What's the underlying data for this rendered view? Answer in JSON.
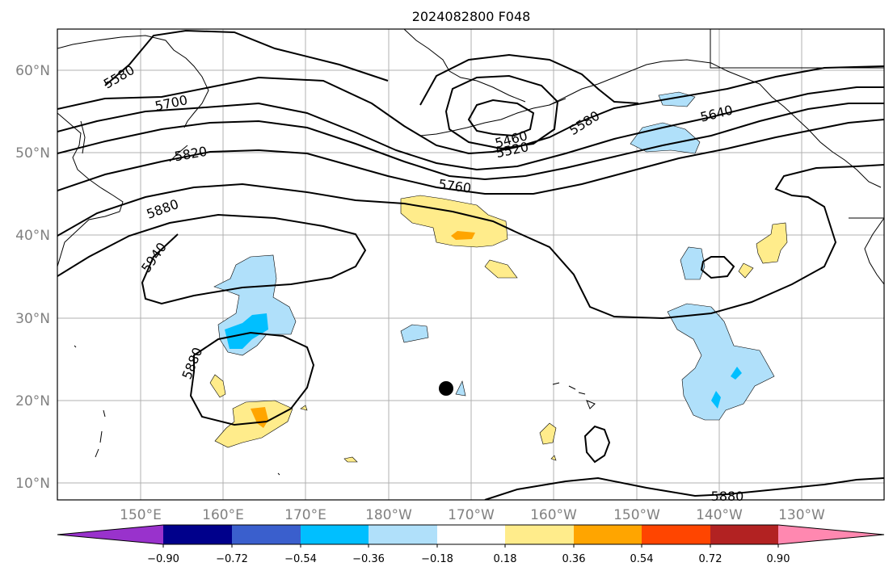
{
  "title": "2024082800 F048",
  "colors": {
    "coast": "#000000",
    "grid": "#b0b0b0",
    "contour": "#000000",
    "bins": [
      "#9932cc",
      "#00008b",
      "#3a5fcd",
      "#00bfff",
      "#b0e0fa",
      "#ffffff",
      "#ffec8b",
      "#ffa500",
      "#ff4500",
      "#b22222",
      "#ff88b0"
    ]
  },
  "axes": {
    "lat_labels": [
      "60°N",
      "50°N",
      "40°N",
      "30°N",
      "20°N",
      "10°N"
    ],
    "lon_labels": [
      "150°E",
      "160°E",
      "170°E",
      "180°W",
      "170°W",
      "160°W",
      "150°W",
      "140°W",
      "130°W"
    ]
  },
  "contour_labels": [
    "5580",
    "5700",
    "5820",
    "5880",
    "5940",
    "5880",
    "5460",
    "5520",
    "5580",
    "5640",
    "5760",
    "5880"
  ],
  "colorbar": {
    "ticks": [
      "−0.90",
      "−0.72",
      "−0.54",
      "−0.36",
      "−0.18",
      "0.18",
      "0.36",
      "0.54",
      "0.72",
      "0.90"
    ]
  }
}
